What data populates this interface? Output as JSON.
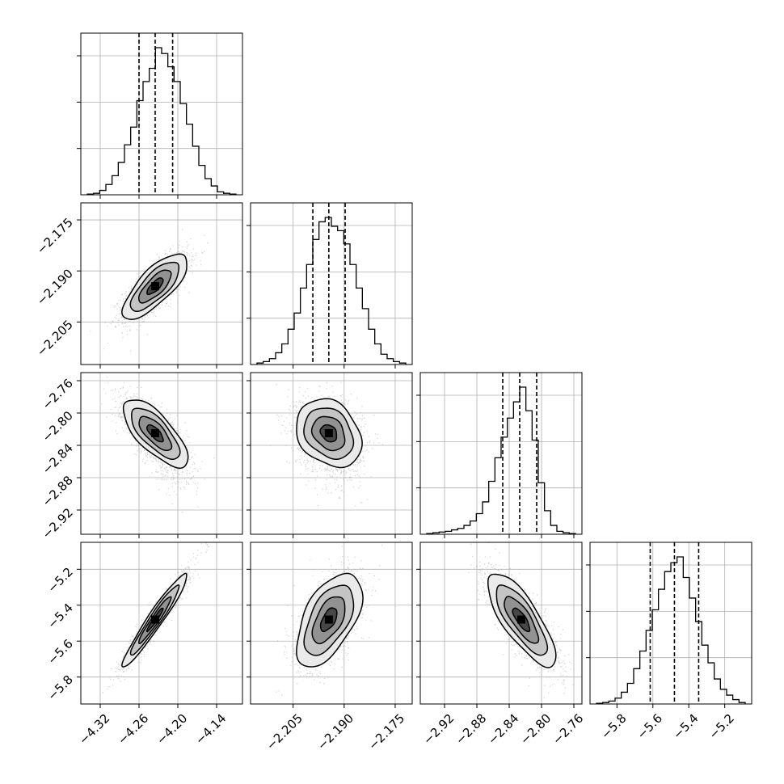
{
  "chart_data": {
    "type": "corner",
    "grid": true,
    "parameters": [
      {
        "range": [
          -4.35,
          -4.1
        ],
        "ticks": [
          -4.32,
          -4.26,
          -4.2,
          -4.14
        ],
        "tick_labels": [
          "−4.32",
          "−4.26",
          "−4.20",
          "−4.14"
        ],
        "quantiles": [
          -4.26,
          -4.235,
          -4.208
        ],
        "center": -4.235,
        "sigma": 0.025,
        "hist": [
          0.5,
          1,
          3,
          7,
          13,
          22,
          34,
          46,
          64,
          77,
          86,
          100,
          96,
          87,
          77,
          62,
          48,
          33,
          20,
          11,
          6,
          2,
          1,
          0.5
        ]
      },
      {
        "range": [
          -2.2175,
          -2.17
        ],
        "ticks": [
          -2.205,
          -2.19,
          -2.175
        ],
        "tick_labels": [
          "−2.205",
          "−2.190",
          "−2.175"
        ],
        "quantiles": [
          -2.1992,
          -2.1945,
          -2.1897
        ],
        "center": -2.1945,
        "sigma": 0.0048,
        "hist": [
          1,
          2,
          4,
          8,
          14,
          24,
          35,
          52,
          68,
          85,
          97,
          100,
          94,
          91,
          82,
          68,
          52,
          38,
          24,
          14,
          7,
          4,
          2,
          1
        ]
      },
      {
        "range": [
          -2.95,
          -2.75
        ],
        "ticks": [
          -2.92,
          -2.88,
          -2.84,
          -2.8,
          -2.76
        ],
        "tick_labels": [
          "−2.92",
          "−2.88",
          "−2.84",
          "−2.80",
          "−2.76"
        ],
        "quantiles": [
          -2.848,
          -2.827,
          -2.806
        ],
        "center": -2.825,
        "sigma": 0.021,
        "hist": [
          0.5,
          1,
          1.5,
          2,
          3,
          4,
          6,
          9,
          14,
          22,
          36,
          52,
          66,
          79,
          90,
          100,
          84,
          64,
          35,
          16,
          6,
          2,
          1,
          0.5
        ]
      },
      {
        "range": [
          -5.95,
          -5.05
        ],
        "ticks": [
          -5.8,
          -5.6,
          -5.4,
          -5.2
        ],
        "tick_labels": [
          "−5.8",
          "−5.6",
          "−5.4",
          "−5.2"
        ],
        "quantiles": [
          -5.615,
          -5.48,
          -5.345
        ],
        "center": -5.48,
        "sigma": 0.13,
        "hist": [
          0.5,
          1,
          2,
          4,
          8,
          14,
          24,
          36,
          50,
          64,
          78,
          90,
          96,
          100,
          86,
          72,
          56,
          40,
          28,
          17,
          10,
          6,
          3,
          1
        ]
      }
    ],
    "correlations": {
      "1_0": 0.75,
      "2_0": -0.72,
      "2_1": -0.25,
      "3_0": 0.96,
      "3_1": 0.55,
      "3_2": -0.78
    },
    "tail_skew": {
      "2": -0.6
    },
    "contour_levels_sigma": [
      0.5,
      1.0,
      1.5,
      2.0
    ],
    "samples_per_panel": 1800
  }
}
